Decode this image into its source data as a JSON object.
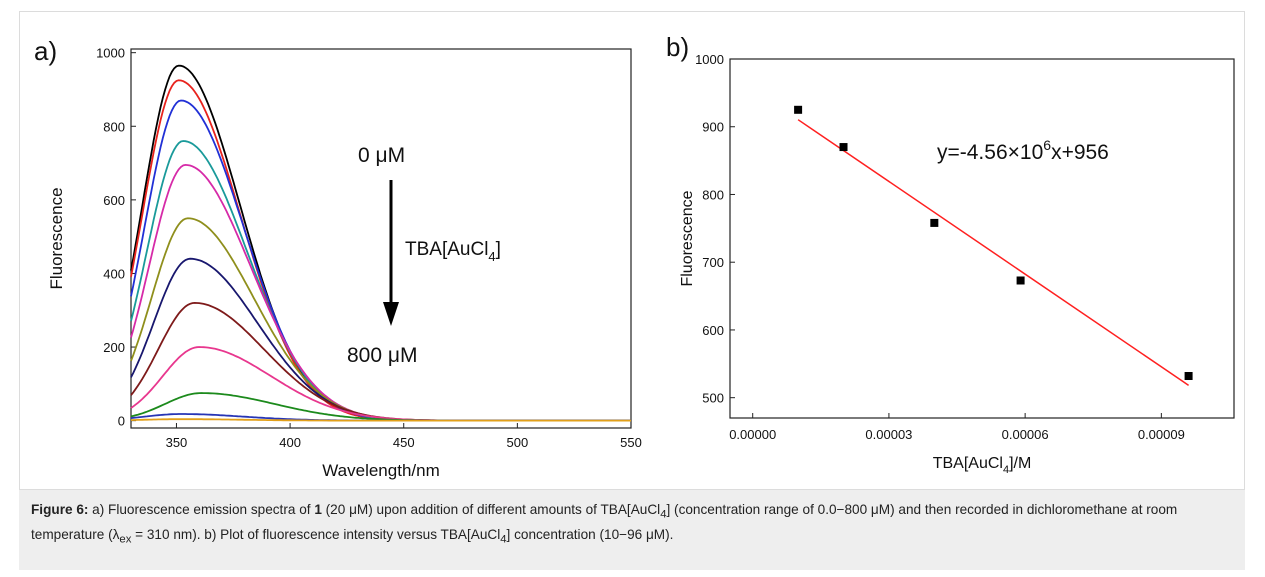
{
  "figure": {
    "panel_a_label": "a)",
    "panel_b_label": "b)"
  },
  "chart_data": [
    {
      "type": "line",
      "panel": "a)",
      "xlabel": "Wavelength/nm",
      "ylabel": "Fluorescence",
      "xlim": [
        330,
        550
      ],
      "ylim": [
        -20,
        1010
      ],
      "xticks": [
        350,
        400,
        450,
        500,
        550
      ],
      "yticks": [
        0,
        200,
        400,
        600,
        800,
        1000
      ],
      "grid": false,
      "annotations": {
        "start_label": "0 μM",
        "titrant_label_main": "TBA[AuCl",
        "titrant_label_sub": "4",
        "titrant_label_end": "]",
        "end_label": "800 μM"
      },
      "series": [
        {
          "peak_x": 351,
          "peak_y": 965,
          "color": "#000000"
        },
        {
          "peak_x": 351,
          "peak_y": 925,
          "color": "#e8231d"
        },
        {
          "peak_x": 352,
          "peak_y": 870,
          "color": "#2130d6"
        },
        {
          "peak_x": 353,
          "peak_y": 760,
          "color": "#1a9a9a"
        },
        {
          "peak_x": 354,
          "peak_y": 695,
          "color": "#d62aa8"
        },
        {
          "peak_x": 355,
          "peak_y": 550,
          "color": "#8f8f1c"
        },
        {
          "peak_x": 356,
          "peak_y": 440,
          "color": "#18176e"
        },
        {
          "peak_x": 358,
          "peak_y": 320,
          "color": "#7e1a1a"
        },
        {
          "peak_x": 360,
          "peak_y": 200,
          "color": "#e8378e"
        },
        {
          "peak_x": 361,
          "peak_y": 75,
          "color": "#1c8a1c"
        },
        {
          "peak_x": 352,
          "peak_y": 18,
          "color": "#2735b5"
        },
        {
          "peak_x": 352,
          "peak_y": 4,
          "color": "#e2a01a"
        }
      ]
    },
    {
      "type": "scatter",
      "panel": "b)",
      "xlabel_main": "TBA[AuCl",
      "xlabel_sub": "4",
      "xlabel_end": "]/M",
      "ylabel": "Fluorescence",
      "xlim": [
        -5e-06,
        0.000106
      ],
      "ylim": [
        470,
        1000
      ],
      "xticks": [
        "0.00000",
        "0.00003",
        "0.00006",
        "0.00009"
      ],
      "xtick_values": [
        0,
        3e-05,
        6e-05,
        9e-05
      ],
      "yticks": [
        500,
        600,
        700,
        800,
        900,
        1000
      ],
      "grid": false,
      "points": [
        {
          "x": 1e-05,
          "y": 925
        },
        {
          "x": 2e-05,
          "y": 870
        },
        {
          "x": 4e-05,
          "y": 758
        },
        {
          "x": 5.9e-05,
          "y": 673
        },
        {
          "x": 9.6e-05,
          "y": 532
        }
      ],
      "fit": {
        "slope": -4560000,
        "intercept": 956,
        "x_range": [
          1e-05,
          9.6e-05
        ],
        "color": "#ff2020",
        "equation_main": "y=-4.56×10",
        "equation_sup": "6",
        "equation_end": "x+956"
      }
    }
  ],
  "caption": {
    "label": "Figure 6:",
    "part1": " a) Fluorescence emission spectra of ",
    "compound": "1",
    "part2": " (20 μM) upon addition of different amounts of TBA[AuCl",
    "sub1": "4",
    "part3": "] (concentration range of 0.0−800 μM) and then recorded in dichloromethane at room temperature (λ",
    "sub2": "ex",
    "part4": " = 310 nm). b) Plot of fluorescence intensity versus TBA[AuCl",
    "sub3": "4",
    "part5": "] concentration (10−96 μM)."
  }
}
